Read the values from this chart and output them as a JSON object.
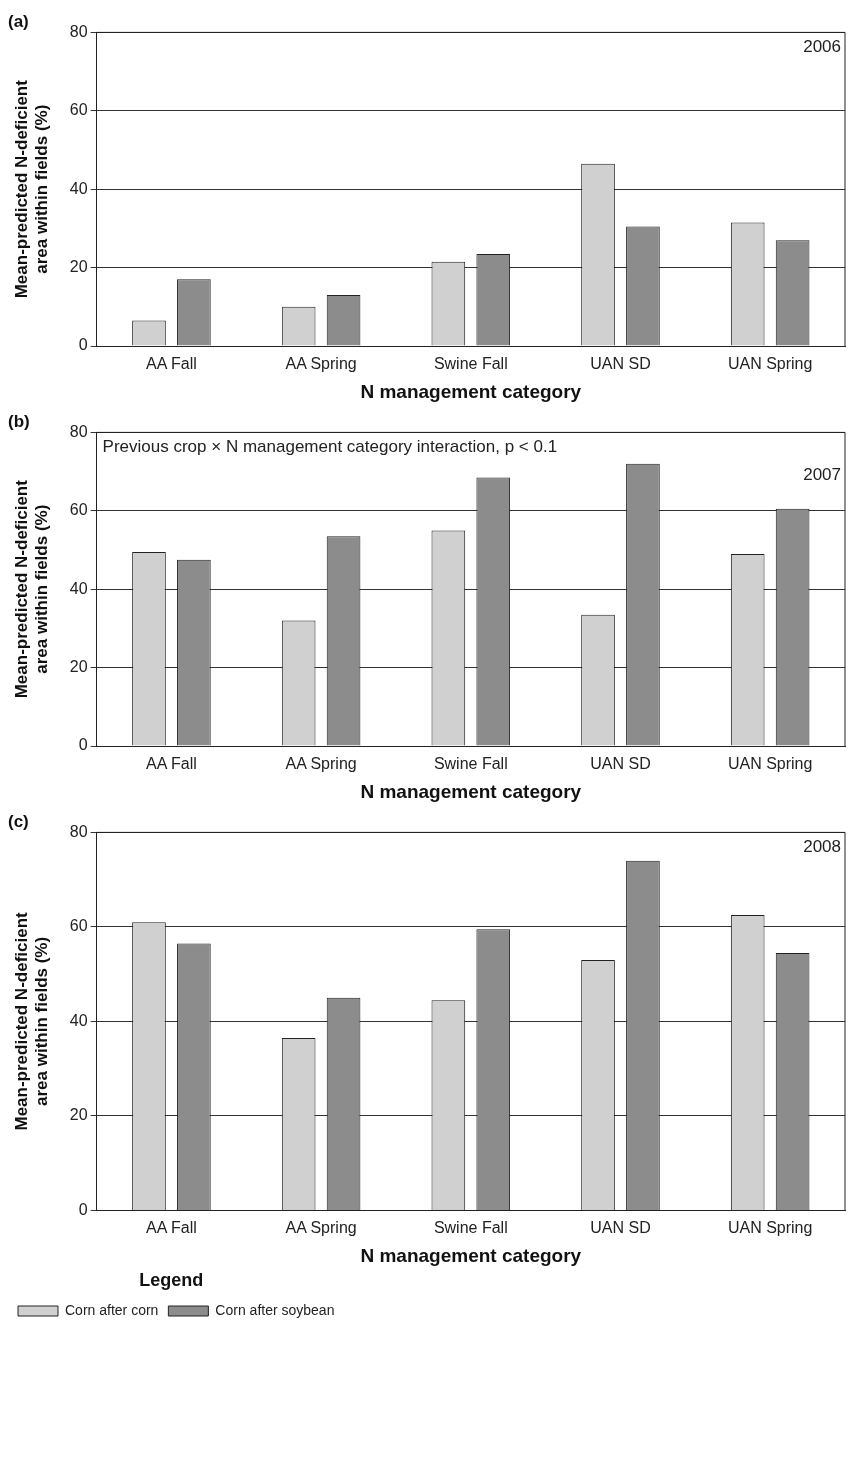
{
  "chart_data": [
    {
      "type": "bar",
      "title": "(a)",
      "xlabel": "N management category",
      "ylabel": "Mean-predicted N-deficient area within fields (%)",
      "categories": [
        "AA Fall",
        "AA Spring",
        "Swine Fall",
        "UAN SD",
        "UAN Spring"
      ],
      "series": [
        {
          "color": "#d0d0d0",
          "values": [
            6.5,
            10,
            21.5,
            46.5,
            31.5
          ]
        },
        {
          "color": "#8c8c8c",
          "values": [
            17,
            13,
            23.5,
            30.5,
            27
          ]
        }
      ],
      "ylim": [
        0,
        80
      ],
      "yticks": [
        0,
        20,
        40,
        60,
        80
      ],
      "grid": "y",
      "legend": false,
      "annotations": [
        "2006"
      ]
    },
    {
      "type": "bar",
      "title": "(b)",
      "xlabel": "N management category",
      "ylabel": "Mean-predicted N-deficient area within fields (%)",
      "categories": [
        "AA Fall",
        "AA Spring",
        "Swine Fall",
        "UAN SD",
        "UAN Spring"
      ],
      "series": [
        {
          "color": "#d0d0d0",
          "values": [
            49.5,
            32,
            55,
            33.5,
            49
          ]
        },
        {
          "color": "#8c8c8c",
          "values": [
            47.5,
            53.5,
            68.5,
            72,
            60.5
          ]
        }
      ],
      "ylim": [
        0,
        80
      ],
      "yticks": [
        0,
        20,
        40,
        60,
        80
      ],
      "grid": "y",
      "legend": false,
      "annotations": [
        "Previous crop × N management category interaction, p < 0.1",
        "2007"
      ]
    },
    {
      "type": "bar",
      "title": "(c)",
      "xlabel": "N management category",
      "ylabel": "Mean-predicted N-deficient area within fields (%)",
      "categories": [
        "AA Fall",
        "AA Spring",
        "Swine Fall",
        "UAN SD",
        "UAN Spring"
      ],
      "series": [
        {
          "name": "Corn after corn",
          "color": "#d0d0d0",
          "values": [
            61,
            36.5,
            44.5,
            53,
            62.5
          ]
        },
        {
          "name": "Corn after soybean",
          "color": "#8c8c8c",
          "values": [
            56.5,
            45,
            59.5,
            74,
            54.5
          ]
        }
      ],
      "ylim": [
        0,
        80
      ],
      "yticks": [
        0,
        20,
        40,
        60,
        80
      ],
      "grid": "y",
      "legend": "bottom left",
      "legend_title": "Legend",
      "annotations": [
        "2008"
      ]
    }
  ]
}
